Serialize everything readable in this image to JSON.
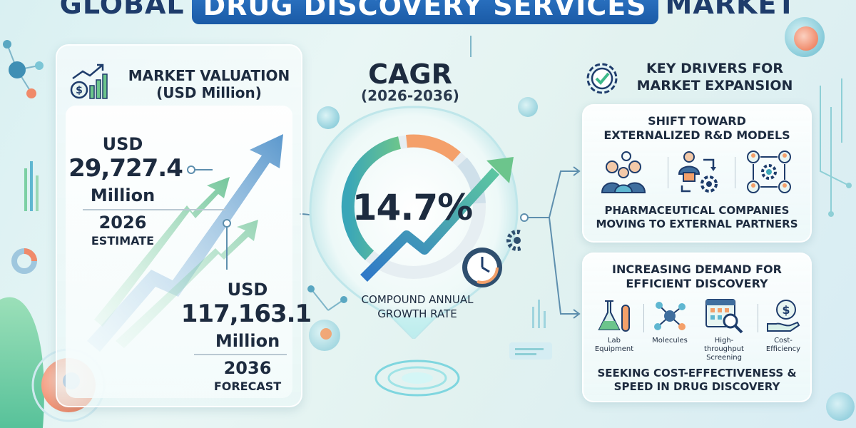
{
  "title": {
    "part1": "Global",
    "highlight": "Drug Discovery Services",
    "part2": "Market"
  },
  "market_valuation": {
    "title_line1": "Market Valuation",
    "title_line2": "(USD Million)",
    "estimate": {
      "currency": "USD",
      "value": "29,727.4",
      "unit": "Million",
      "year": "2026",
      "label": "Estimate"
    },
    "forecast": {
      "currency": "USD",
      "value": "117,163.1",
      "unit": "Million",
      "year": "2036",
      "label": "Forecast"
    },
    "icon": "dollar-chart-icon"
  },
  "cagr": {
    "title": "CAGR",
    "years": "(2026-2036)",
    "value": "14.7%",
    "desc_line1": "Compound Annual",
    "desc_line2": "Growth Rate",
    "icon": "gauge-clock-icon"
  },
  "key_drivers": {
    "title_line1": "Key Drivers for",
    "title_line2": "Market Expansion",
    "icon": "gear-check-icon",
    "card1": {
      "head_line1": "Shift Toward",
      "head_line2": "Externalized R&D Models",
      "foot_line1": "Pharmaceutical Companies",
      "foot_line2": "Moving to External Partners",
      "icons": [
        "team-icon",
        "transfer-icon",
        "network-icon"
      ]
    },
    "card2": {
      "head_line1": "Increasing Demand for",
      "head_line2": "Efficient Discovery",
      "items": [
        {
          "label_line1": "Lab",
          "label_line2": "Equipment",
          "icon": "flask-icon"
        },
        {
          "label_line1": "Molecules",
          "label_line2": "",
          "icon": "molecule-icon"
        },
        {
          "label_line1": "High-throughput",
          "label_line2": "Screening",
          "icon": "screening-icon"
        },
        {
          "label_line1": "Cost-",
          "label_line2": "Efficiency",
          "icon": "hand-coin-icon"
        }
      ],
      "foot_line1": "Seeking Cost-Effectiveness &",
      "foot_line2": "Speed in Drug Discovery"
    }
  },
  "colors": {
    "navy": "#1e3c6b",
    "blue": "#2f78c8",
    "green": "#6cc58c",
    "orange": "#f4a06a",
    "teal": "#3fa8b8"
  }
}
